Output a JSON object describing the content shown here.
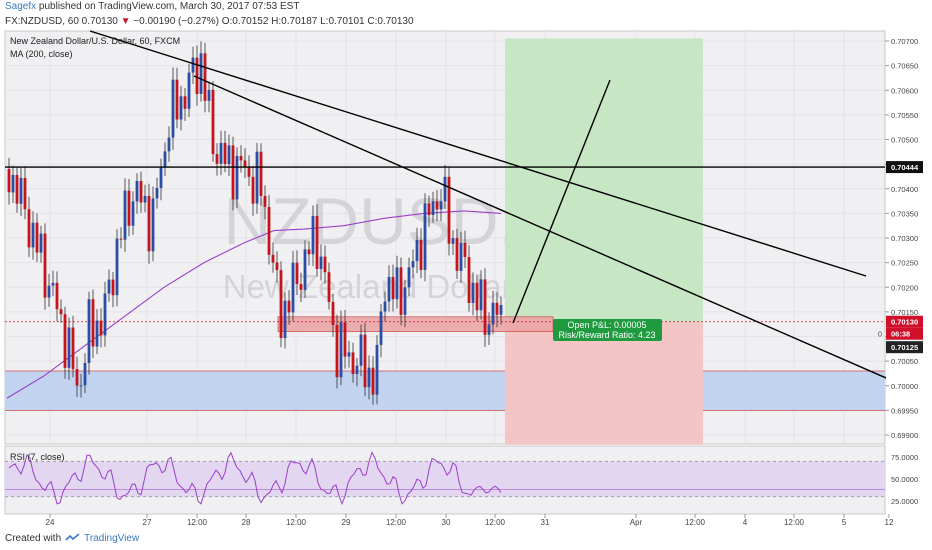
{
  "header": {
    "author": "Sagefx",
    "published_text": " published on TradingView.com, March 30, 2017 07:53 EST",
    "symbol_line_pre": "FX:NZDUSD, 60  0.70130 ",
    "down_arrow": "▼",
    "change": " −0.00190 (−0.27%)",
    "ohlc": "  O:0.70152  H:0.70187  L:0.70101  C:0.70130"
  },
  "chart_title": "New Zealand Dollar/U.S. Dollar, 60, FXCM",
  "ma_label": "MA (200, close)",
  "watermark": {
    "symbol": "NZDUSD, 60",
    "name": "New Zealand Dollar/U.S. Dollar"
  },
  "rsi_label": "RSI (7, close)",
  "position_box": {
    "pnl": "Open P&L: 0.00005",
    "rr": "Risk/Reward Ratio: 4.23"
  },
  "footer": {
    "created_with": "Created with",
    "brand": "TradingView"
  },
  "colors": {
    "up": "#2b4da3",
    "down": "#c4141c",
    "ma": "#9a3fc8",
    "rsi": "#9a3fc8",
    "profit_zone": "#c7e6c4",
    "loss_zone": "#f4c5c5",
    "support_zone": "#c2d3ef",
    "resistance_line": "#000000",
    "price_tag": "#d0102a",
    "pnl_label": "#1f9a3f"
  },
  "chart_data": {
    "type": "candlestick",
    "symbol": "NZDUSD",
    "timeframe": "60",
    "y_ticks": [
      "0.70700",
      "0.70650",
      "0.70600",
      "0.70550",
      "0.70500",
      "0.70450",
      "0.70400",
      "0.70350",
      "0.70300",
      "0.70250",
      "0.70200",
      "0.70150",
      "0.70100",
      "0.70050",
      "0.70000",
      "0.69950",
      "0.69900"
    ],
    "x_ticks": [
      "24",
      "27",
      "12:00",
      "28",
      "12:00",
      "29",
      "12:00",
      "30",
      "12:00",
      "31",
      "Apr",
      "12:00",
      "4",
      "12:00",
      "5",
      "12"
    ],
    "ylim": [
      0.6987,
      0.7073
    ],
    "price_tags": {
      "resistance": "0.70444",
      "last": "0.70130",
      "countdown": "06:38",
      "entry_zone": "0.70125",
      "side": "0"
    },
    "levels": {
      "resistance": 0.70444,
      "last_price": 0.7013,
      "entry": 0.70125
    },
    "zones": {
      "support": [
        0.6995,
        0.7003
      ],
      "entry": [
        0.7011,
        0.7014
      ],
      "target": [
        0.7013,
        0.70705
      ],
      "stop": [
        0.6988,
        0.7013
      ]
    },
    "rsi_ticks": [
      "75.0000",
      "50.0000",
      "25.0000"
    ],
    "rsi_band": [
      30,
      70
    ],
    "rsi_last": 38,
    "rsi_range": [
      15,
      85
    ]
  }
}
